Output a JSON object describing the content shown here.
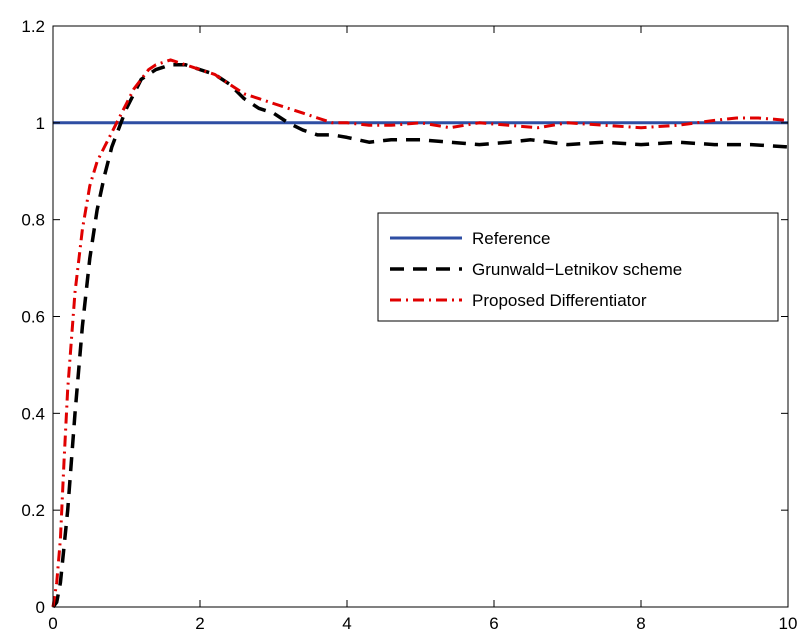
{
  "chart_data": {
    "type": "line",
    "title": "",
    "xlabel": "",
    "ylabel": "",
    "xlim": [
      0,
      10
    ],
    "ylim": [
      0,
      1.2
    ],
    "xticks": [
      0,
      2,
      4,
      6,
      8,
      10
    ],
    "yticks": [
      0,
      0.2,
      0.4,
      0.6,
      0.8,
      1,
      1.2
    ],
    "xtick_labels": [
      "0",
      "2",
      "4",
      "6",
      "8",
      "10"
    ],
    "ytick_labels": [
      "0",
      "0.2",
      "0.4",
      "0.6",
      "0.8",
      "1",
      "1.2"
    ],
    "grid": false,
    "legend_position": "center-right",
    "series": [
      {
        "name": "Reference",
        "color": "#2e4ea3",
        "style": "solid",
        "x": [
          0,
          10
        ],
        "y": [
          1.0,
          1.0
        ]
      },
      {
        "name": "Grunwald−Letnikov scheme",
        "color": "#000000",
        "style": "dashed",
        "x": [
          0,
          0.05,
          0.1,
          0.2,
          0.3,
          0.4,
          0.5,
          0.6,
          0.7,
          0.8,
          0.9,
          1.0,
          1.1,
          1.2,
          1.3,
          1.4,
          1.5,
          1.6,
          1.7,
          1.8,
          1.9,
          2.0,
          2.2,
          2.4,
          2.6,
          2.8,
          3.0,
          3.2,
          3.4,
          3.6,
          3.8,
          4.0,
          4.3,
          4.6,
          5.0,
          5.4,
          5.8,
          6.2,
          6.5,
          7.0,
          7.5,
          8.0,
          8.5,
          9.0,
          9.5,
          10.0
        ],
        "y": [
          0,
          0.01,
          0.05,
          0.2,
          0.4,
          0.58,
          0.72,
          0.82,
          0.89,
          0.95,
          0.99,
          1.03,
          1.06,
          1.09,
          1.1,
          1.11,
          1.115,
          1.12,
          1.12,
          1.12,
          1.115,
          1.11,
          1.1,
          1.08,
          1.05,
          1.03,
          1.02,
          1.0,
          0.985,
          0.975,
          0.975,
          0.97,
          0.96,
          0.965,
          0.965,
          0.96,
          0.955,
          0.96,
          0.965,
          0.955,
          0.96,
          0.955,
          0.96,
          0.955,
          0.955,
          0.95
        ]
      },
      {
        "name": "Proposed Differentiator",
        "color": "#e00000",
        "style": "dashdot",
        "x": [
          0,
          0.05,
          0.1,
          0.15,
          0.2,
          0.3,
          0.4,
          0.5,
          0.6,
          0.7,
          0.8,
          0.9,
          1.0,
          1.1,
          1.2,
          1.3,
          1.4,
          1.5,
          1.6,
          1.7,
          1.8,
          1.9,
          2.0,
          2.2,
          2.4,
          2.6,
          2.8,
          3.0,
          3.2,
          3.4,
          3.6,
          3.8,
          4.0,
          4.3,
          4.6,
          5.0,
          5.4,
          5.8,
          6.2,
          6.6,
          7.0,
          7.5,
          8.0,
          8.5,
          9.0,
          9.3,
          9.6,
          10.0
        ],
        "y": [
          0,
          0.05,
          0.14,
          0.3,
          0.45,
          0.65,
          0.78,
          0.87,
          0.92,
          0.95,
          0.98,
          1.01,
          1.04,
          1.07,
          1.09,
          1.11,
          1.12,
          1.125,
          1.13,
          1.125,
          1.12,
          1.115,
          1.11,
          1.1,
          1.08,
          1.06,
          1.05,
          1.04,
          1.03,
          1.02,
          1.01,
          1.0,
          1.0,
          0.995,
          0.995,
          1.0,
          0.99,
          1.0,
          0.995,
          0.99,
          1.0,
          0.995,
          0.99,
          0.995,
          1.005,
          1.01,
          1.01,
          1.005
        ]
      }
    ]
  }
}
